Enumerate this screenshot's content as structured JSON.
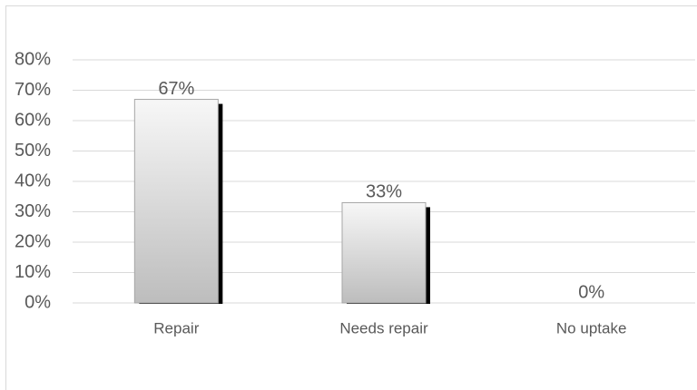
{
  "chart_data": {
    "type": "bar",
    "categories": [
      "Repair",
      "Needs repair",
      "No uptake"
    ],
    "values": [
      67,
      33,
      0
    ],
    "value_labels": [
      "67%",
      "33%",
      "0%"
    ],
    "ylim": [
      0,
      80
    ],
    "yticks": [
      {
        "value": 0,
        "label": "0%"
      },
      {
        "value": 10,
        "label": "10%"
      },
      {
        "value": 20,
        "label": "20%"
      },
      {
        "value": 30,
        "label": "30%"
      },
      {
        "value": 40,
        "label": "40%"
      },
      {
        "value": 50,
        "label": "50%"
      },
      {
        "value": 60,
        "label": "60%"
      },
      {
        "value": 70,
        "label": "70%"
      },
      {
        "value": 80,
        "label": "80%"
      }
    ],
    "grid": true
  }
}
